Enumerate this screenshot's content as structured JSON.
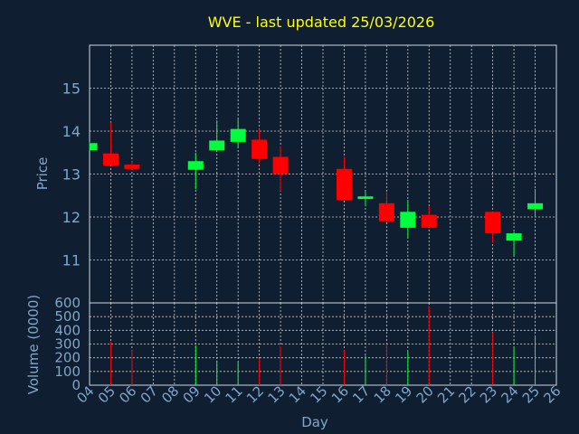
{
  "chart_data": {
    "type": "candlestick",
    "title": "WVE - last updated 25/03/2026",
    "xlabel": "Day",
    "price_ylabel": "Price",
    "volume_ylabel": "Volume (0000)",
    "x_ticks": [
      "04",
      "05",
      "06",
      "07",
      "08",
      "09",
      "10",
      "11",
      "12",
      "13",
      "14",
      "15",
      "16",
      "17",
      "18",
      "19",
      "20",
      "21",
      "22",
      "23",
      "24",
      "25",
      "26"
    ],
    "price_ticks": [
      11,
      12,
      13,
      14,
      15
    ],
    "price_ylim": [
      10.0,
      16.0
    ],
    "volume_ticks": [
      0,
      100,
      200,
      300,
      400,
      500,
      600
    ],
    "volume_ylim": [
      0,
      600
    ],
    "grid": true,
    "colors": {
      "up": "#00ff3c",
      "down": "#ff0000",
      "background": "#0f1e30",
      "grid": "#d0d0d0",
      "title": "#ffff00",
      "text": "#7fa7c9"
    },
    "candles": [
      {
        "day": "04",
        "open": 13.55,
        "high": 13.75,
        "low": 13.55,
        "close": 13.72,
        "volume": 0
      },
      {
        "day": "05",
        "open": 13.48,
        "high": 14.2,
        "low": 13.2,
        "close": 13.2,
        "volume": 320
      },
      {
        "day": "06",
        "open": 13.22,
        "high": 13.3,
        "low": 13.1,
        "close": 13.12,
        "volume": 255
      },
      {
        "day": "09",
        "open": 13.1,
        "high": 13.5,
        "low": 12.65,
        "close": 13.3,
        "volume": 290
      },
      {
        "day": "10",
        "open": 13.55,
        "high": 14.25,
        "low": 13.55,
        "close": 13.78,
        "volume": 180
      },
      {
        "day": "11",
        "open": 13.75,
        "high": 14.3,
        "low": 13.6,
        "close": 14.05,
        "volume": 170
      },
      {
        "day": "12",
        "open": 13.8,
        "high": 14.05,
        "low": 13.25,
        "close": 13.35,
        "volume": 195
      },
      {
        "day": "13",
        "open": 13.4,
        "high": 13.65,
        "low": 12.6,
        "close": 13.0,
        "volume": 285
      },
      {
        "day": "16",
        "open": 13.12,
        "high": 13.4,
        "low": 12.4,
        "close": 12.4,
        "volume": 255
      },
      {
        "day": "17",
        "open": 12.42,
        "high": 12.6,
        "low": 12.25,
        "close": 12.48,
        "volume": 215
      },
      {
        "day": "18",
        "open": 12.32,
        "high": 12.6,
        "low": 11.9,
        "close": 11.9,
        "volume": 300
      },
      {
        "day": "19",
        "open": 11.75,
        "high": 12.4,
        "low": 11.5,
        "close": 12.12,
        "volume": 245
      },
      {
        "day": "20",
        "open": 12.05,
        "high": 12.25,
        "low": 11.75,
        "close": 11.75,
        "volume": 575
      },
      {
        "day": "23",
        "open": 12.12,
        "high": 12.12,
        "low": 11.4,
        "close": 11.62,
        "volume": 385
      },
      {
        "day": "24",
        "open": 11.45,
        "high": 11.65,
        "low": 11.1,
        "close": 11.62,
        "volume": 275
      },
      {
        "day": "25",
        "open": 12.18,
        "high": 12.65,
        "low": 12.0,
        "close": 12.32,
        "volume": 360
      }
    ]
  }
}
